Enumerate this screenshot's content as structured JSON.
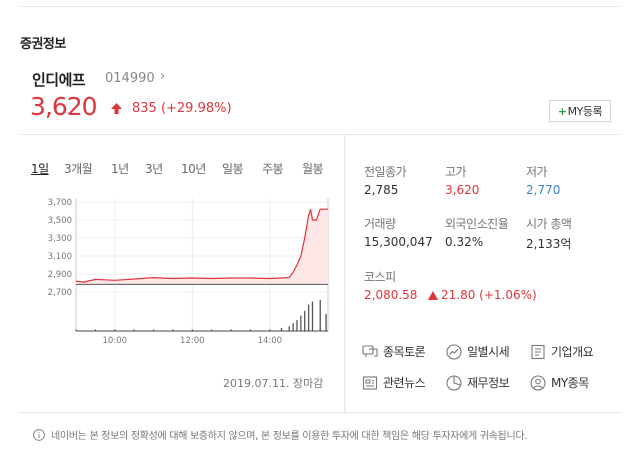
{
  "section_title": "증권정보",
  "stock": {
    "name": "인디에프",
    "code": "014990",
    "chevron": "›",
    "price": "3,620",
    "change": "835 (+29.98%)",
    "my_button_plus": "+",
    "my_button_label": "MY등록"
  },
  "tabs": [
    "1일",
    "3개월",
    "1년",
    "3년",
    "10년",
    "일봉",
    "주봉",
    "월봉"
  ],
  "active_tab": "1일",
  "date_stamp": "2019.07.11. 장마감",
  "stats": {
    "prev_close_label": "전일종가",
    "prev_close": "2,785",
    "high_label": "고가",
    "high": "3,620",
    "low_label": "저가",
    "low": "2,770",
    "volume_label": "거래량",
    "volume": "15,300,047",
    "foreign_label": "외국인소진율",
    "foreign": "0.32%",
    "marketcap_label": "시가 총액",
    "marketcap": "2,133억",
    "index_label": "코스피",
    "index_value": "2,080.58",
    "index_change": "21.80 (+1.06%)"
  },
  "links": {
    "discussion": "종목토론",
    "daily_price": "일별시세",
    "company_info": "기업개요",
    "news": "관련뉴스",
    "financials": "재무정보",
    "my_stocks": "MY종목"
  },
  "disclaimer": "네이버는 본 정보의 정확성에 대해 보증하지 않으며, 본 정보를 이용한 투자에 대한 책임은 해당 투자자에게 귀속됩니다.",
  "colors": {
    "up": "#e0353b",
    "down": "#3f86d6",
    "my_plus": "#1fa149"
  },
  "chart_data": {
    "type": "area",
    "y_ticks": [
      "3,700",
      "3,500",
      "3,300",
      "3,100",
      "2,900",
      "2,700"
    ],
    "x_ticks": [
      "10:00",
      "12:00",
      "14:00"
    ],
    "ylim": [
      2700,
      3700
    ],
    "xlim": [
      9.0,
      15.5
    ],
    "baseline": 2785,
    "grid": true,
    "price": [
      [
        9.0,
        2820
      ],
      [
        9.2,
        2810
      ],
      [
        9.5,
        2840
      ],
      [
        10.0,
        2830
      ],
      [
        10.5,
        2845
      ],
      [
        11.0,
        2860
      ],
      [
        11.5,
        2850
      ],
      [
        12.0,
        2855
      ],
      [
        12.5,
        2850
      ],
      [
        13.0,
        2855
      ],
      [
        13.5,
        2855
      ],
      [
        14.0,
        2850
      ],
      [
        14.3,
        2855
      ],
      [
        14.5,
        2860
      ],
      [
        14.6,
        2920
      ],
      [
        14.7,
        3000
      ],
      [
        14.8,
        3100
      ],
      [
        14.9,
        3300
      ],
      [
        15.0,
        3550
      ],
      [
        15.05,
        3620
      ],
      [
        15.1,
        3500
      ],
      [
        15.2,
        3500
      ],
      [
        15.3,
        3620
      ],
      [
        15.5,
        3620
      ]
    ],
    "volume": [
      [
        9.0,
        0.05
      ],
      [
        9.5,
        0.05
      ],
      [
        10.0,
        0.05
      ],
      [
        10.5,
        0.05
      ],
      [
        11.0,
        0.05
      ],
      [
        11.5,
        0.05
      ],
      [
        12.0,
        0.05
      ],
      [
        12.5,
        0.05
      ],
      [
        13.0,
        0.05
      ],
      [
        13.5,
        0.05
      ],
      [
        14.0,
        0.05
      ],
      [
        14.3,
        0.1
      ],
      [
        14.5,
        0.15
      ],
      [
        14.6,
        0.25
      ],
      [
        14.7,
        0.35
      ],
      [
        14.8,
        0.5
      ],
      [
        14.9,
        0.65
      ],
      [
        15.0,
        0.85
      ],
      [
        15.1,
        0.95
      ],
      [
        15.3,
        1.0
      ],
      [
        15.45,
        0.55
      ]
    ]
  }
}
